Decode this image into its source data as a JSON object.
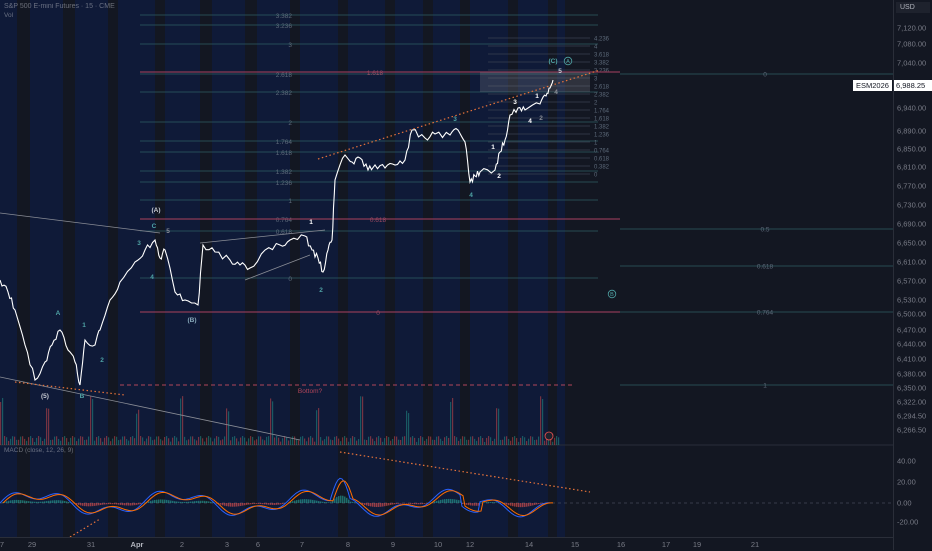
{
  "header": {
    "title": "S&P 500 E-mini Futures · 15 · CME",
    "volume_label": "Vol"
  },
  "macd": {
    "label": "MACD (close, 12, 26, 9)",
    "ticks": [
      "40.00",
      "20.00",
      "0.00",
      "-20.00"
    ]
  },
  "price_axis": {
    "currency": "USD",
    "ticks": [
      "7,120.00",
      "7,080.00",
      "7,040.00",
      "6,940.00",
      "6,890.00",
      "6,850.00",
      "6,810.00",
      "6,770.00",
      "6,730.00",
      "6,690.00",
      "6,650.00",
      "6,610.00",
      "6,570.00",
      "6,530.00",
      "6,500.00",
      "6,470.00",
      "6,440.00",
      "6,410.00",
      "6,380.00",
      "6,350.00",
      "6,322.00",
      "6,294.50",
      "6,266.50"
    ],
    "last_price": "6,988.25",
    "symbol": "ESM2026"
  },
  "time_axis": {
    "ticks": [
      "7",
      "29",
      "31",
      "Apr",
      "2",
      "3",
      "6",
      "7",
      "8",
      "9",
      "10",
      "12",
      "14",
      "15",
      "16",
      "17",
      "19",
      "21"
    ]
  },
  "fib_left": [
    "3.382",
    "3.236",
    "3",
    "2.618",
    "2.382",
    "2",
    "1.764",
    "1.618",
    "1.382",
    "1.236",
    "1",
    "0.764",
    "0.618",
    "0"
  ],
  "fib_right": [
    "4.236",
    "4",
    "3.618",
    "3.382",
    "3.236",
    "3",
    "2.618",
    "2.382",
    "2",
    "1.764",
    "1.618",
    "1.382",
    "1.236",
    "1",
    "0.764",
    "0.618",
    "0.382",
    "0"
  ],
  "fib_far": [
    "0",
    "0.5",
    "0.618",
    "0.764",
    "1"
  ],
  "fib_red": [
    "1.618",
    "0.618",
    "0"
  ],
  "wave_labels": [
    "(A)",
    "C",
    "5",
    "3",
    "4",
    "(B)",
    "A",
    "1",
    "2",
    "(5)",
    "B",
    "1",
    "2",
    "3",
    "4",
    "1",
    "2",
    "3",
    "4",
    "1",
    "2",
    "4",
    "5",
    "(C)",
    "A",
    "B"
  ],
  "annotation": "Bottom?",
  "colors": {
    "bg_session": "#0f1a38",
    "bg": "#131722",
    "price": "#ffffff",
    "fib": "#2f5e63",
    "fib_red": "#8c3a55",
    "orange": "#e8733a",
    "macd": "#2962ff",
    "signal": "#ff6d00",
    "teal": "#4fa3a5"
  }
}
